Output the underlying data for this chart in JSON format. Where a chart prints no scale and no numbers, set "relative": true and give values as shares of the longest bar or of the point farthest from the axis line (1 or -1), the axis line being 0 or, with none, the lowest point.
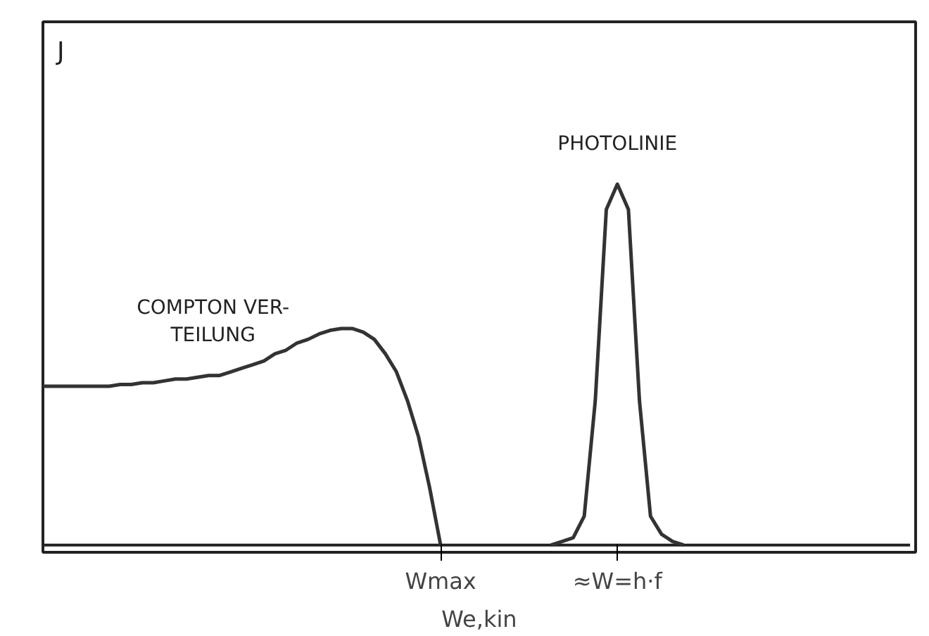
{
  "chart_data": {
    "type": "line",
    "relative": true,
    "xlabel": "We,kin",
    "ylabel": "J",
    "categories": [
      null,
      null,
      null,
      null,
      null,
      null,
      null,
      null,
      null,
      null,
      null,
      null,
      null,
      null,
      null,
      null,
      null,
      null,
      null,
      null,
      null,
      null,
      null,
      null,
      null,
      null,
      null,
      null,
      null,
      null,
      null,
      null,
      null,
      null,
      null,
      null,
      "Wmax",
      null,
      null,
      null,
      null,
      null,
      null,
      null,
      null,
      null,
      null,
      null,
      null,
      null,
      null,
      null,
      "≈W=h·f",
      null,
      null,
      null,
      null,
      null,
      null,
      null,
      null,
      null,
      null,
      null,
      null,
      null,
      null,
      null,
      null,
      null,
      null,
      null,
      null,
      null,
      null,
      null,
      null
    ],
    "series": [
      {
        "color": "#333333",
        "values": [
          0.44,
          0.44,
          0.44,
          0.44,
          0.44,
          0.44,
          0.44,
          0.445,
          0.445,
          0.45,
          0.45,
          0.455,
          0.46,
          0.46,
          0.465,
          0.47,
          0.47,
          0.48,
          0.49,
          0.5,
          0.51,
          0.53,
          0.54,
          0.56,
          0.57,
          0.585,
          0.595,
          0.6,
          0.6,
          0.59,
          0.57,
          0.53,
          0.48,
          0.4,
          0.3,
          0.16,
          0,
          null,
          null,
          null,
          null,
          null,
          null,
          null,
          null,
          null,
          0,
          0.01,
          0.02,
          0.08,
          0.4,
          0.93,
          1,
          0.93,
          0.4,
          0.08,
          0.03,
          0.01,
          0,
          null,
          null,
          null,
          null,
          null,
          null,
          null,
          null,
          null,
          null,
          null,
          null,
          null,
          null,
          null,
          null,
          null,
          null
        ]
      }
    ],
    "annotations": [
      "COMPTON VER-\nTEILUNG",
      {
        "text": "PHOTOLINIE",
        "x": "≈W=h·f",
        "y": 1
      }
    ],
    "grid": false,
    "marker": "none",
    "line_style": "solid"
  }
}
